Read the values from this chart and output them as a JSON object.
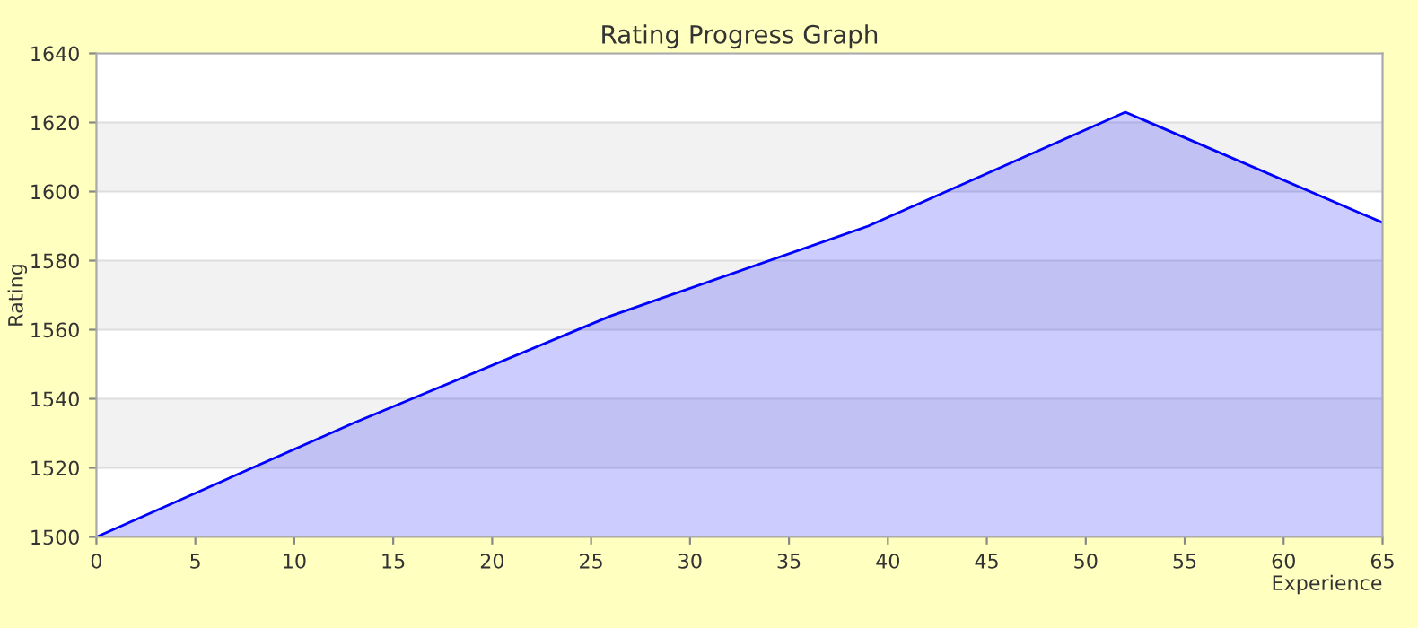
{
  "chart_data": {
    "type": "area",
    "title": "Rating Progress Graph",
    "xlabel": "Experience",
    "ylabel": "Rating",
    "x": [
      0,
      13,
      26,
      39,
      52,
      65
    ],
    "series": [
      {
        "color": "#0000ff",
        "values": [
          1500,
          1533,
          1564,
          1590,
          1623,
          1591
        ]
      }
    ],
    "xlim": [
      0,
      65
    ],
    "xticks": [
      0,
      5,
      10,
      15,
      20,
      25,
      30,
      35,
      40,
      45,
      50,
      55,
      60,
      65
    ],
    "ylim": [
      1500,
      1640
    ],
    "yticks": [
      1500,
      1520,
      1540,
      1560,
      1580,
      1600,
      1620,
      1640
    ],
    "grid": "y",
    "legend": false
  }
}
